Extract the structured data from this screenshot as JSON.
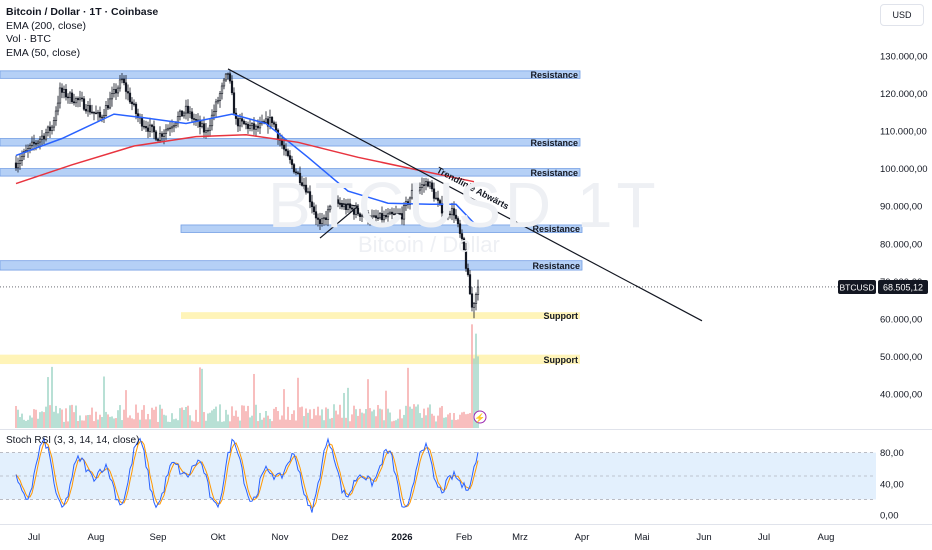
{
  "legend": {
    "title": "Bitcoin / Dollar · 1T · Coinbase",
    "ema200": "EMA (200, close)",
    "vol": "Vol · BTC",
    "ema50": "EMA (50, close)"
  },
  "currency": "USD",
  "symbol": "BTCUSD",
  "last_price_label": "68.505,12",
  "watermark": {
    "big": "BTCUSD 1T",
    "small": "Bitcoin / Dollar"
  },
  "stoch_label": "Stoch RSI (3, 3, 14, 14, close)",
  "colors": {
    "resistance_zone": "#a9c8f5",
    "resistance_border": "#5b8ee0",
    "support_zone": "#fff3b0",
    "ema50": "#2962ff",
    "ema200": "#e8343f",
    "candle": "#131722",
    "volume_up": "#9ad2c3",
    "volume_down": "#f5a3a3",
    "stoch_k": "#2962ff",
    "stoch_d": "#ff9800",
    "stoch_band": "#e3f0fd"
  },
  "chart_data": [
    {
      "type": "candlestick",
      "title": "Bitcoin / Dollar · 1T · Coinbase",
      "y_axis": {
        "ticks": [
          130000,
          120000,
          110000,
          100000,
          90000,
          80000,
          70000,
          60000,
          50000,
          40000
        ],
        "tick_labels": [
          "130.000,00",
          "120.000,00",
          "110.000,00",
          "100.000,00",
          "90.000,00",
          "80.000,00",
          "70.000,00",
          "60.000,00",
          "50.000,00",
          "40.000,00"
        ]
      },
      "x_axis": {
        "labels": [
          "Jul",
          "Aug",
          "Sep",
          "Okt",
          "Nov",
          "Dez",
          "2026",
          "Feb",
          "Mrz",
          "Apr",
          "Mai",
          "Jun",
          "Jul",
          "Aug"
        ],
        "label_dates": [
          "2025-07-01",
          "2025-08-01",
          "2025-09-01",
          "2025-10-01",
          "2025-11-01",
          "2025-12-01",
          "2026-01-01",
          "2026-02-01",
          "2026-03-01",
          "2026-04-01",
          "2026-05-01",
          "2026-06-01",
          "2026-07-01",
          "2026-08-01"
        ]
      },
      "price_keypoints": [
        [
          "2025-06-22",
          101500
        ],
        [
          "2025-07-01",
          106500
        ],
        [
          "2025-07-10",
          111000
        ],
        [
          "2025-07-14",
          120500
        ],
        [
          "2025-07-25",
          117500
        ],
        [
          "2025-08-03",
          113500
        ],
        [
          "2025-08-14",
          123500
        ],
        [
          "2025-08-22",
          113500
        ],
        [
          "2025-09-01",
          108500
        ],
        [
          "2025-09-15",
          115500
        ],
        [
          "2025-09-25",
          109500
        ],
        [
          "2025-10-06",
          125500
        ],
        [
          "2025-10-10",
          112500
        ],
        [
          "2025-10-20",
          110500
        ],
        [
          "2025-10-28",
          113000
        ],
        [
          "2025-11-04",
          103500
        ],
        [
          "2025-11-14",
          95000
        ],
        [
          "2025-11-21",
          84500
        ],
        [
          "2025-11-28",
          91000
        ],
        [
          "2025-12-05",
          89500
        ],
        [
          "2025-12-18",
          86500
        ],
        [
          "2026-01-01",
          87800
        ],
        [
          "2026-01-06",
          93500
        ],
        [
          "2026-01-14",
          96500
        ],
        [
          "2026-01-20",
          89500
        ],
        [
          "2026-01-27",
          88500
        ],
        [
          "2026-02-01",
          78000
        ],
        [
          "2026-02-05",
          63000
        ],
        [
          "2026-02-08",
          68505
        ]
      ],
      "series": [
        {
          "name": "EMA (50, close)",
          "keypoints": [
            [
              "2025-06-22",
              103500
            ],
            [
              "2025-07-15",
              108000
            ],
            [
              "2025-08-10",
              114500
            ],
            [
              "2025-08-25",
              113500
            ],
            [
              "2025-09-15",
              112000
            ],
            [
              "2025-10-08",
              114500
            ],
            [
              "2025-10-25",
              112000
            ],
            [
              "2025-11-15",
              103000
            ],
            [
              "2025-12-05",
              94000
            ],
            [
              "2025-12-25",
              90800
            ],
            [
              "2026-01-15",
              90500
            ],
            [
              "2026-01-28",
              90500
            ],
            [
              "2026-02-06",
              85500
            ]
          ]
        },
        {
          "name": "EMA (200, close)",
          "keypoints": [
            [
              "2025-06-22",
              96000
            ],
            [
              "2025-07-20",
              101000
            ],
            [
              "2025-08-20",
              106000
            ],
            [
              "2025-09-20",
              108500
            ],
            [
              "2025-10-15",
              109000
            ],
            [
              "2025-11-10",
              107000
            ],
            [
              "2025-12-10",
              103000
            ],
            [
              "2026-01-10",
              99500
            ],
            [
              "2026-02-06",
              96500
            ]
          ]
        }
      ],
      "annotations": {
        "resistance_zones": [
          {
            "label": "Resistance",
            "low": 124000,
            "high": 126000
          },
          {
            "label": "Resistance",
            "low": 106000,
            "high": 108000
          },
          {
            "label": "Resistance",
            "low": 98000,
            "high": 100000
          },
          {
            "label": "Resistance",
            "low": 83000,
            "high": 85000
          },
          {
            "label": "Resistance",
            "low": 73000,
            "high": 75500
          }
        ],
        "support_zones": [
          {
            "label": "Support",
            "low": 60000,
            "high": 61800
          },
          {
            "label": "Support",
            "low": 48000,
            "high": 50500
          }
        ],
        "trendline": {
          "label": "Trendlinie Abwärts",
          "from": [
            "2025-10-06",
            126500
          ],
          "to": [
            "2026-05-31",
            59500
          ]
        },
        "triangle": [
          [
            "2025-11-21",
            81500
          ],
          [
            "2025-12-10",
            90000
          ],
          [
            "2025-11-28",
            91000
          ]
        ],
        "last_price": 68505.12
      }
    },
    {
      "type": "bar",
      "title": "Vol · BTC",
      "description": "volume histogram under price"
    },
    {
      "type": "line",
      "title": "Stoch RSI (3, 3, 14, 14, close)",
      "y_axis": {
        "ticks": [
          80,
          40,
          0
        ],
        "tick_labels": [
          "80,00",
          "40,00",
          "0,00"
        ]
      },
      "bands": {
        "upper": 80,
        "middle": 50,
        "lower": 20
      }
    }
  ]
}
